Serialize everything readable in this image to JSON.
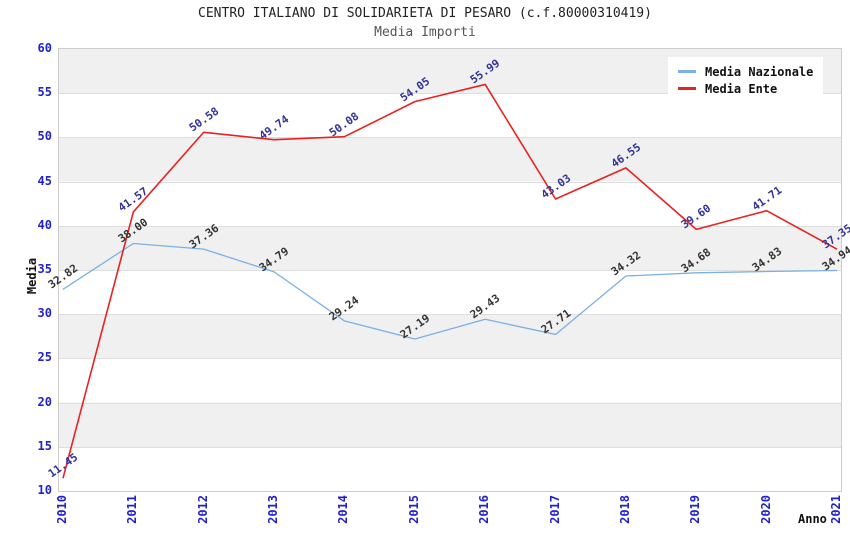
{
  "chart_data": {
    "type": "line",
    "title": "CENTRO ITALIANO DI SOLIDARIETA DI PESARO (c.f.80000310419)",
    "subtitle": "Media Importi",
    "xlabel": "Anno",
    "ylabel": "Media",
    "x": [
      2010,
      2011,
      2012,
      2013,
      2014,
      2015,
      2016,
      2017,
      2018,
      2019,
      2020,
      2021
    ],
    "series": [
      {
        "name": "Media Nazionale",
        "color": "#7cb0e4",
        "label_color": "#333333",
        "values": [
          32.82,
          38.0,
          37.36,
          34.79,
          29.24,
          27.19,
          29.43,
          27.71,
          34.32,
          34.68,
          34.83,
          34.94
        ]
      },
      {
        "name": "Media Ente",
        "color": "#e82222",
        "label_color": "#333399",
        "values": [
          11.45,
          41.57,
          50.58,
          49.74,
          50.08,
          54.05,
          55.99,
          43.03,
          46.55,
          39.6,
          41.71,
          37.35
        ]
      }
    ],
    "ylim": [
      10,
      60
    ],
    "ytick_step": 5,
    "grid": true,
    "band_colors": [
      "#f0f0f0",
      "#ffffff"
    ],
    "tick_color": "#2222cc",
    "legend_position": "top-right"
  },
  "legend": {
    "items": [
      {
        "label": "Media Nazionale",
        "color": "#7cb0e4"
      },
      {
        "label": "Media Ente",
        "color": "#e82222"
      }
    ]
  }
}
